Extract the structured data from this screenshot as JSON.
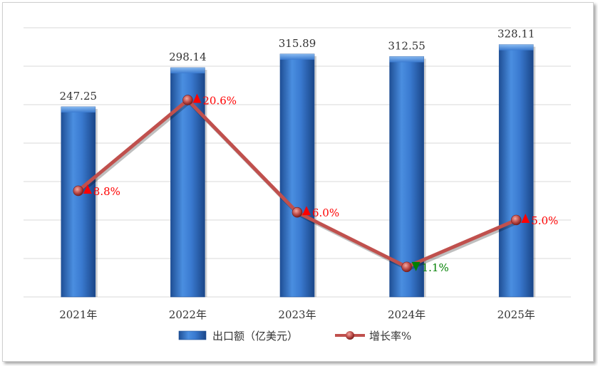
{
  "chart_data": {
    "type": "bar",
    "categories": [
      "2021年",
      "2022年",
      "2023年",
      "2024年",
      "2025年"
    ],
    "series": [
      {
        "name": "出口额（亿美元）",
        "type": "bar",
        "values": [
          247.25,
          298.14,
          315.89,
          312.55,
          328.11
        ],
        "labels": [
          "247.25",
          "298.14",
          "315.89",
          "312.55",
          "328.11"
        ],
        "color": "#3a78c8"
      },
      {
        "name": "增长率%",
        "type": "line",
        "values": [
          8.8,
          20.6,
          6.0,
          -1.1,
          5.0
        ],
        "labels": [
          "8.8%",
          "20.6%",
          "6.0%",
          "1.1%",
          "5.0%"
        ],
        "color": "#c0504d"
      }
    ],
    "grid": true,
    "legend_position": "bottom",
    "up_color": "#ff0000",
    "down_color": "#008000"
  }
}
